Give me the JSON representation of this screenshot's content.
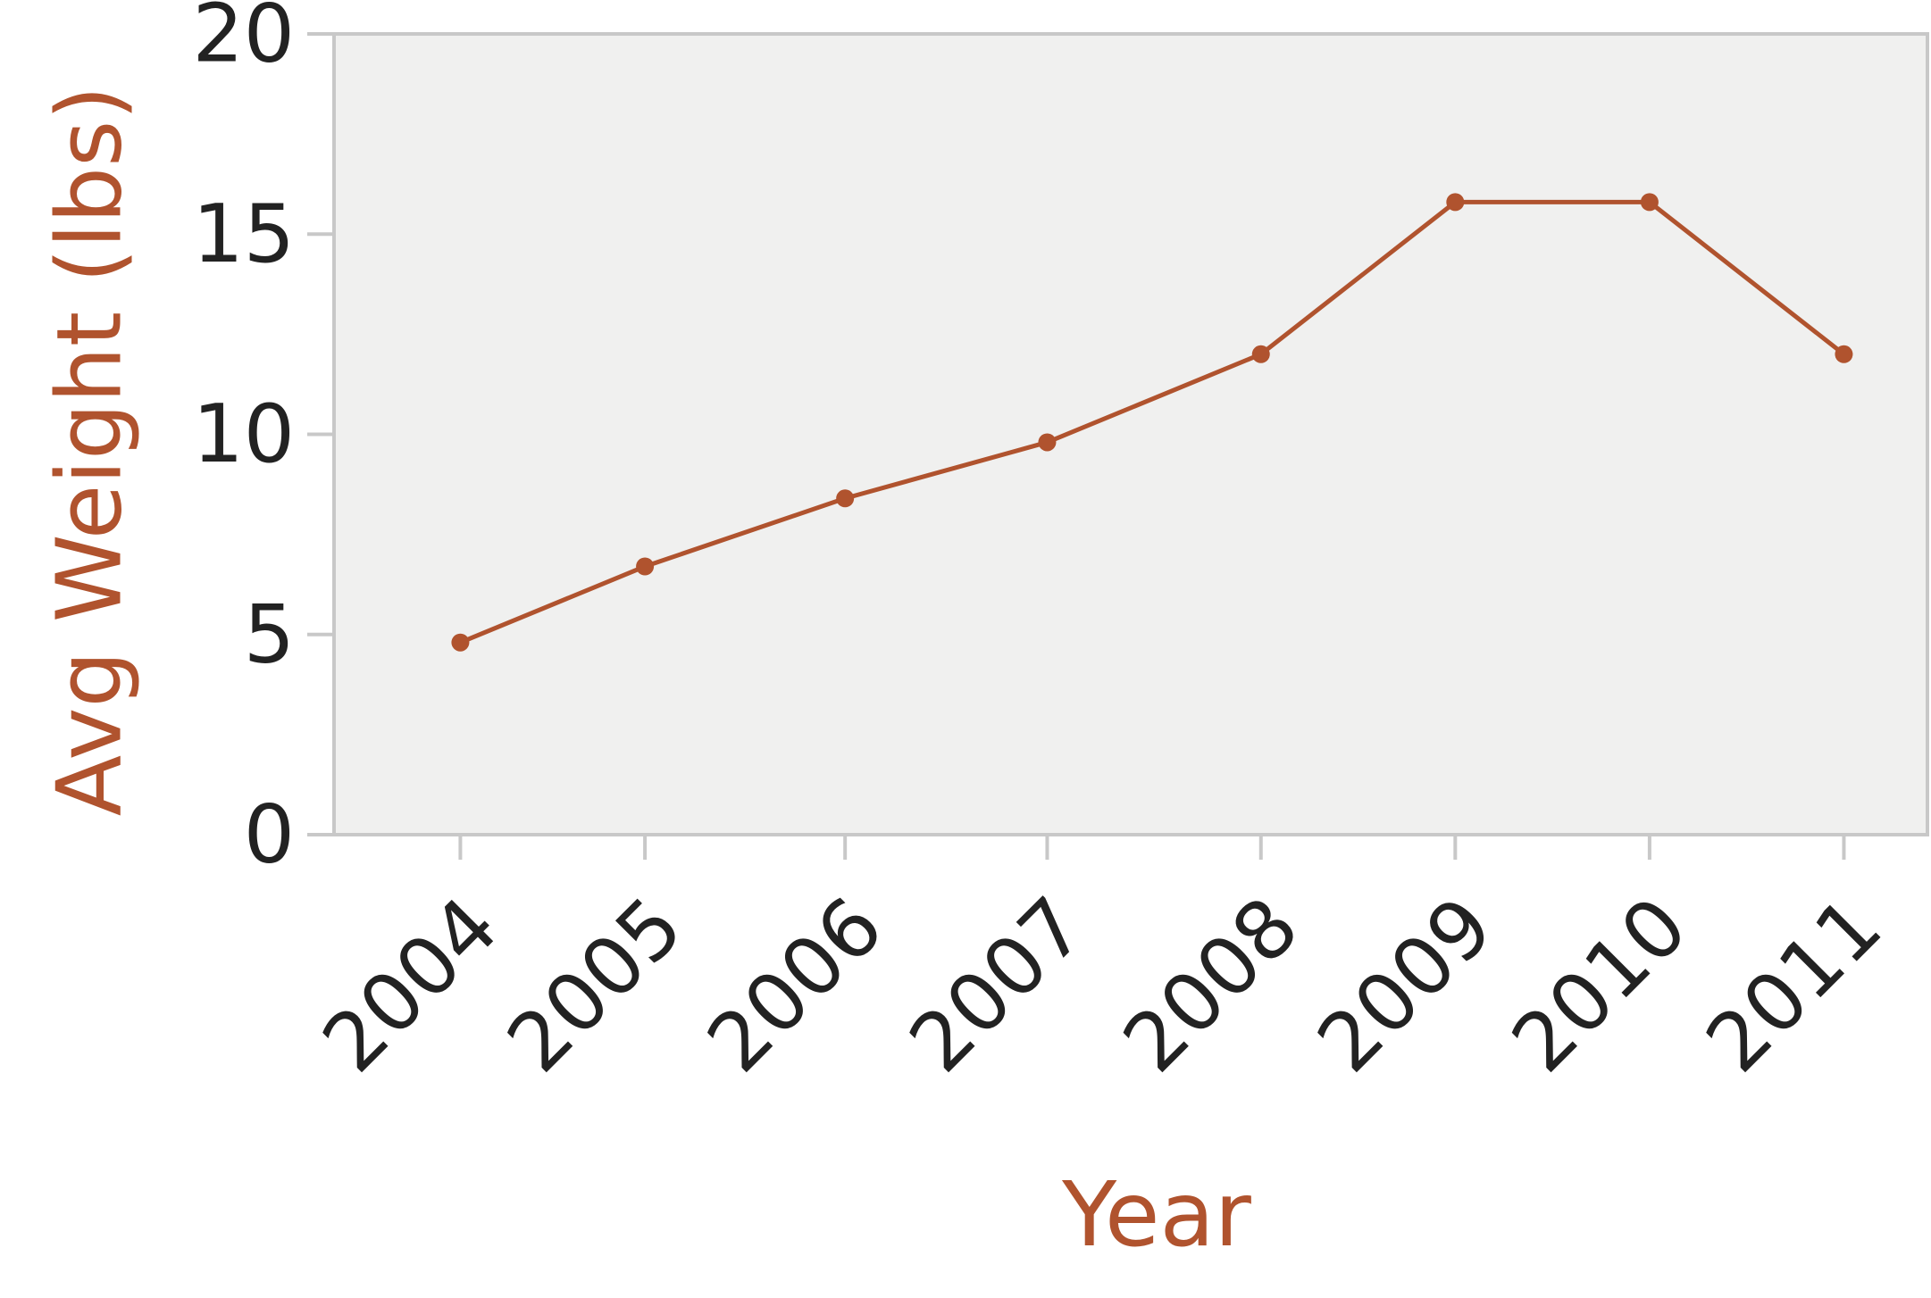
{
  "chart_data": {
    "type": "line",
    "title": "",
    "xlabel": "Year",
    "ylabel": "Avg Weight (lbs)",
    "categories": [
      "2004",
      "2005",
      "2006",
      "2007",
      "2008",
      "2009",
      "2010",
      "2011"
    ],
    "x": [
      2004.0,
      2004.95,
      2005.98,
      2007.02,
      2008.12,
      2009.12,
      2010.12,
      2011.12
    ],
    "values": [
      4.8,
      6.7,
      8.4,
      9.8,
      12.0,
      15.8,
      15.8,
      12.0
    ],
    "ylim": [
      0,
      20
    ],
    "yticks": [
      0,
      5,
      10,
      15,
      20
    ],
    "xlim": [
      2003.35,
      2011.55
    ],
    "grid": false,
    "colors": {
      "series": "#b0532e",
      "axis_title": "#b0532e",
      "plot_background": "#f0f0ef",
      "axis_line": "#c8c8c8",
      "tick_text": "#222222"
    }
  }
}
